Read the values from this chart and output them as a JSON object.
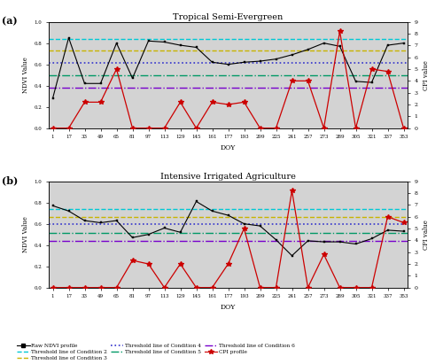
{
  "doy": [
    1,
    17,
    33,
    49,
    65,
    81,
    97,
    113,
    129,
    145,
    161,
    177,
    193,
    209,
    225,
    241,
    257,
    273,
    289,
    305,
    321,
    337,
    353
  ],
  "ndvi_a": [
    0.28,
    0.85,
    0.42,
    0.42,
    0.8,
    0.47,
    0.82,
    0.81,
    0.78,
    0.76,
    0.62,
    0.6,
    0.62,
    0.63,
    0.65,
    0.69,
    0.74,
    0.8,
    0.77,
    0.44,
    0.43,
    0.78,
    0.8
  ],
  "cpi_a": [
    0,
    0,
    2.2,
    2.2,
    5.0,
    0,
    0,
    0,
    2.2,
    0,
    2.2,
    2.0,
    2.2,
    0,
    0,
    4.0,
    4.0,
    0,
    8.2,
    0,
    5.0,
    4.8,
    0
  ],
  "ndvi_b": [
    0.77,
    0.72,
    0.63,
    0.61,
    0.63,
    0.47,
    0.5,
    0.56,
    0.52,
    0.81,
    0.72,
    0.68,
    0.6,
    0.58,
    0.45,
    0.3,
    0.44,
    0.43,
    0.43,
    0.41,
    0.46,
    0.54,
    0.53
  ],
  "cpi_b": [
    0,
    0,
    0,
    0,
    0,
    2.3,
    2.0,
    0,
    2.0,
    0,
    0,
    2.0,
    5.0,
    0,
    0,
    8.2,
    0,
    2.8,
    0,
    0,
    0,
    6.0,
    5.5
  ],
  "thresh_a": {
    "cond2": 0.84,
    "cond3": 0.73,
    "cond4": 0.61,
    "cond5": 0.5,
    "cond6": 0.38
  },
  "thresh_b": {
    "cond2": 0.74,
    "cond3": 0.66,
    "cond4": 0.6,
    "cond5": 0.51,
    "cond6": 0.44
  },
  "title_a": "Tropical Semi-Evergreen",
  "title_b": "Intensive Irrigated Agriculture",
  "xlabel": "DOY",
  "ylabel_left": "NDVI Value",
  "ylabel_right": "CPI value",
  "ylim_left": [
    0.0,
    1.0
  ],
  "ylim_right": [
    0,
    9
  ],
  "yticks_left": [
    0.0,
    0.2,
    0.4,
    0.6,
    0.8,
    1.0
  ],
  "yticks_right": [
    0,
    1,
    2,
    3,
    4,
    5,
    6,
    7,
    8,
    9
  ],
  "xtick_labels": [
    "1",
    "17",
    "33",
    "49",
    "65",
    "81",
    "97",
    "113",
    "129",
    "145",
    "161",
    "177",
    "193",
    "209",
    "225",
    "241",
    "257",
    "273",
    "289",
    "305",
    "321",
    "337",
    "353"
  ],
  "color_ndvi": "#000000",
  "color_cpi": "#cc0000",
  "color_cond2": "#00c8d4",
  "color_cond3": "#c8b400",
  "color_cond4": "#3333cc",
  "color_cond5": "#009966",
  "color_cond6": "#7700cc",
  "panel_label_a": "(a)",
  "panel_label_b": "(b)",
  "bg_color": "#d3d3d3"
}
